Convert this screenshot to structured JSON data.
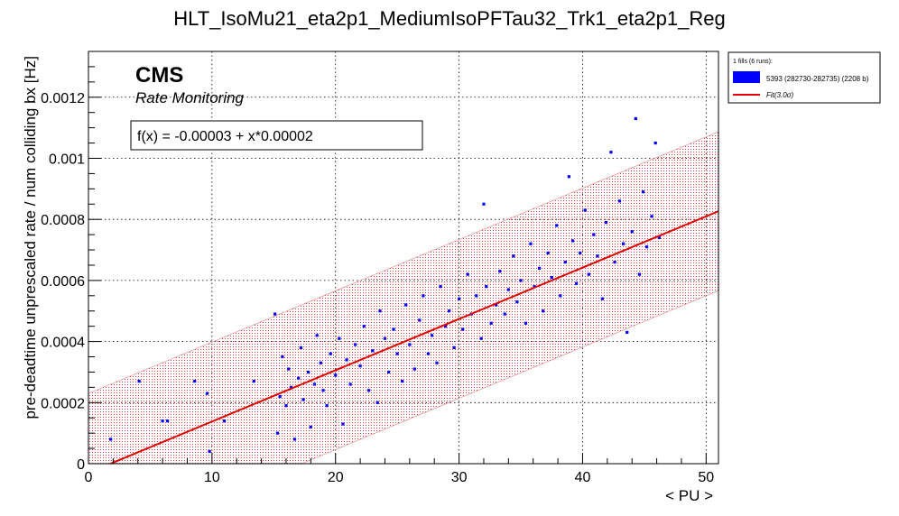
{
  "chart_data": {
    "type": "scatter",
    "title": "HLT_IsoMu21_eta2p1_MediumIsoPFTau32_Trk1_eta2p1_Reg",
    "xlabel": "< PU >",
    "ylabel": "pre-deadtime unprescaled rate / num colliding bx [Hz]",
    "xlim": [
      0,
      51
    ],
    "ylim": [
      0,
      0.00135
    ],
    "x_ticks": [
      "0",
      "10",
      "20",
      "30",
      "40",
      "50"
    ],
    "y_ticks": [
      "0",
      "0.0002",
      "0.0004",
      "0.0006",
      "0.0008",
      "0.001",
      "0.0012"
    ],
    "x_tick_values": [
      0,
      10,
      20,
      30,
      40,
      50
    ],
    "y_tick_values": [
      0,
      0.0002,
      0.0004,
      0.0006,
      0.0008,
      0.001,
      0.0012
    ],
    "grid": true,
    "cms_label": "CMS",
    "cms_sublabel": "Rate Monitoring",
    "fit_text": "f(x) = -0.00003 + x*0.00002",
    "fit": {
      "intercept": -3e-05,
      "slope": 1.68e-05,
      "band_halfwidth": 0.00026,
      "color": "#e00000"
    },
    "legend": {
      "position": "top-right",
      "header": "1 fills (6 runs):",
      "entries": [
        {
          "label": "5393 (282730-282735) (2208 b)",
          "color": "#0000ff",
          "kind": "box"
        },
        {
          "label": "Fit(3.0σ)",
          "color": "#e00000",
          "kind": "line"
        }
      ]
    },
    "series": [
      {
        "name": "5393 (282730-282735) (2208 b)",
        "color": "#0000ff",
        "points": [
          [
            1.8,
            8e-05
          ],
          [
            4.1,
            0.00027
          ],
          [
            6.0,
            0.00014
          ],
          [
            6.4,
            0.00014
          ],
          [
            8.6,
            0.00027
          ],
          [
            9.6,
            0.00023
          ],
          [
            9.8,
            4e-05
          ],
          [
            11.0,
            0.00014
          ],
          [
            13.4,
            0.00027
          ],
          [
            15.1,
            0.00049
          ],
          [
            15.3,
            0.0001
          ],
          [
            15.5,
            0.00022
          ],
          [
            15.7,
            0.00035
          ],
          [
            16.0,
            0.00019
          ],
          [
            16.2,
            0.00031
          ],
          [
            16.4,
            0.00025
          ],
          [
            16.7,
            8e-05
          ],
          [
            17.0,
            0.00028
          ],
          [
            17.2,
            0.00038
          ],
          [
            17.4,
            0.00021
          ],
          [
            17.8,
            0.0003
          ],
          [
            18.0,
            0.00012
          ],
          [
            18.3,
            0.00026
          ],
          [
            18.5,
            0.00042
          ],
          [
            18.8,
            0.00033
          ],
          [
            19.0,
            0.00024
          ],
          [
            19.3,
            0.00019
          ],
          [
            19.6,
            0.00036
          ],
          [
            20.0,
            0.00029
          ],
          [
            20.3,
            0.00041
          ],
          [
            20.6,
            0.00013
          ],
          [
            20.9,
            0.00034
          ],
          [
            21.2,
            0.00026
          ],
          [
            21.6,
            0.00039
          ],
          [
            22.0,
            0.00032
          ],
          [
            22.3,
            0.00045
          ],
          [
            22.7,
            0.00024
          ],
          [
            23.0,
            0.00037
          ],
          [
            23.4,
            0.0002
          ],
          [
            23.6,
            0.0005
          ],
          [
            24.0,
            0.00041
          ],
          [
            24.3,
            0.0003
          ],
          [
            24.7,
            0.00044
          ],
          [
            25.0,
            0.00036
          ],
          [
            25.4,
            0.00027
          ],
          [
            25.7,
            0.00052
          ],
          [
            26.0,
            0.00039
          ],
          [
            26.4,
            0.00031
          ],
          [
            26.8,
            0.00047
          ],
          [
            27.1,
            0.00055
          ],
          [
            27.5,
            0.00036
          ],
          [
            27.8,
            0.00042
          ],
          [
            28.2,
            0.00033
          ],
          [
            28.5,
            0.00058
          ],
          [
            28.9,
            0.00045
          ],
          [
            29.2,
            0.0005
          ],
          [
            29.6,
            0.00038
          ],
          [
            30.0,
            0.00054
          ],
          [
            30.3,
            0.00044
          ],
          [
            30.7,
            0.00062
          ],
          [
            31.0,
            0.00049
          ],
          [
            31.4,
            0.00055
          ],
          [
            31.8,
            0.00041
          ],
          [
            32.0,
            0.00085
          ],
          [
            32.2,
            0.00058
          ],
          [
            32.6,
            0.00046
          ],
          [
            33.0,
            0.00052
          ],
          [
            33.3,
            0.00063
          ],
          [
            33.7,
            0.00049
          ],
          [
            34.0,
            0.00057
          ],
          [
            34.4,
            0.00068
          ],
          [
            34.7,
            0.00053
          ],
          [
            35.0,
            0.0006
          ],
          [
            35.4,
            0.00046
          ],
          [
            35.8,
            0.00072
          ],
          [
            36.1,
            0.00058
          ],
          [
            36.5,
            0.00064
          ],
          [
            36.8,
            0.0005
          ],
          [
            37.2,
            0.00069
          ],
          [
            37.5,
            0.00061
          ],
          [
            37.9,
            0.00078
          ],
          [
            38.2,
            0.00055
          ],
          [
            38.6,
            0.00066
          ],
          [
            38.9,
            0.00094
          ],
          [
            39.2,
            0.00073
          ],
          [
            39.5,
            0.00059
          ],
          [
            39.8,
            0.00069
          ],
          [
            40.2,
            0.00083
          ],
          [
            40.5,
            0.00062
          ],
          [
            40.9,
            0.00075
          ],
          [
            41.2,
            0.00068
          ],
          [
            41.6,
            0.00054
          ],
          [
            41.9,
            0.00079
          ],
          [
            42.3,
            0.00102
          ],
          [
            42.6,
            0.00066
          ],
          [
            43.0,
            0.00086
          ],
          [
            43.3,
            0.00072
          ],
          [
            43.6,
            0.00043
          ],
          [
            44.0,
            0.00076
          ],
          [
            44.3,
            0.00113
          ],
          [
            44.6,
            0.00062
          ],
          [
            44.9,
            0.00089
          ],
          [
            45.2,
            0.00071
          ],
          [
            45.6,
            0.00081
          ],
          [
            45.9,
            0.00105
          ],
          [
            46.2,
            0.00074
          ]
        ]
      }
    ]
  }
}
